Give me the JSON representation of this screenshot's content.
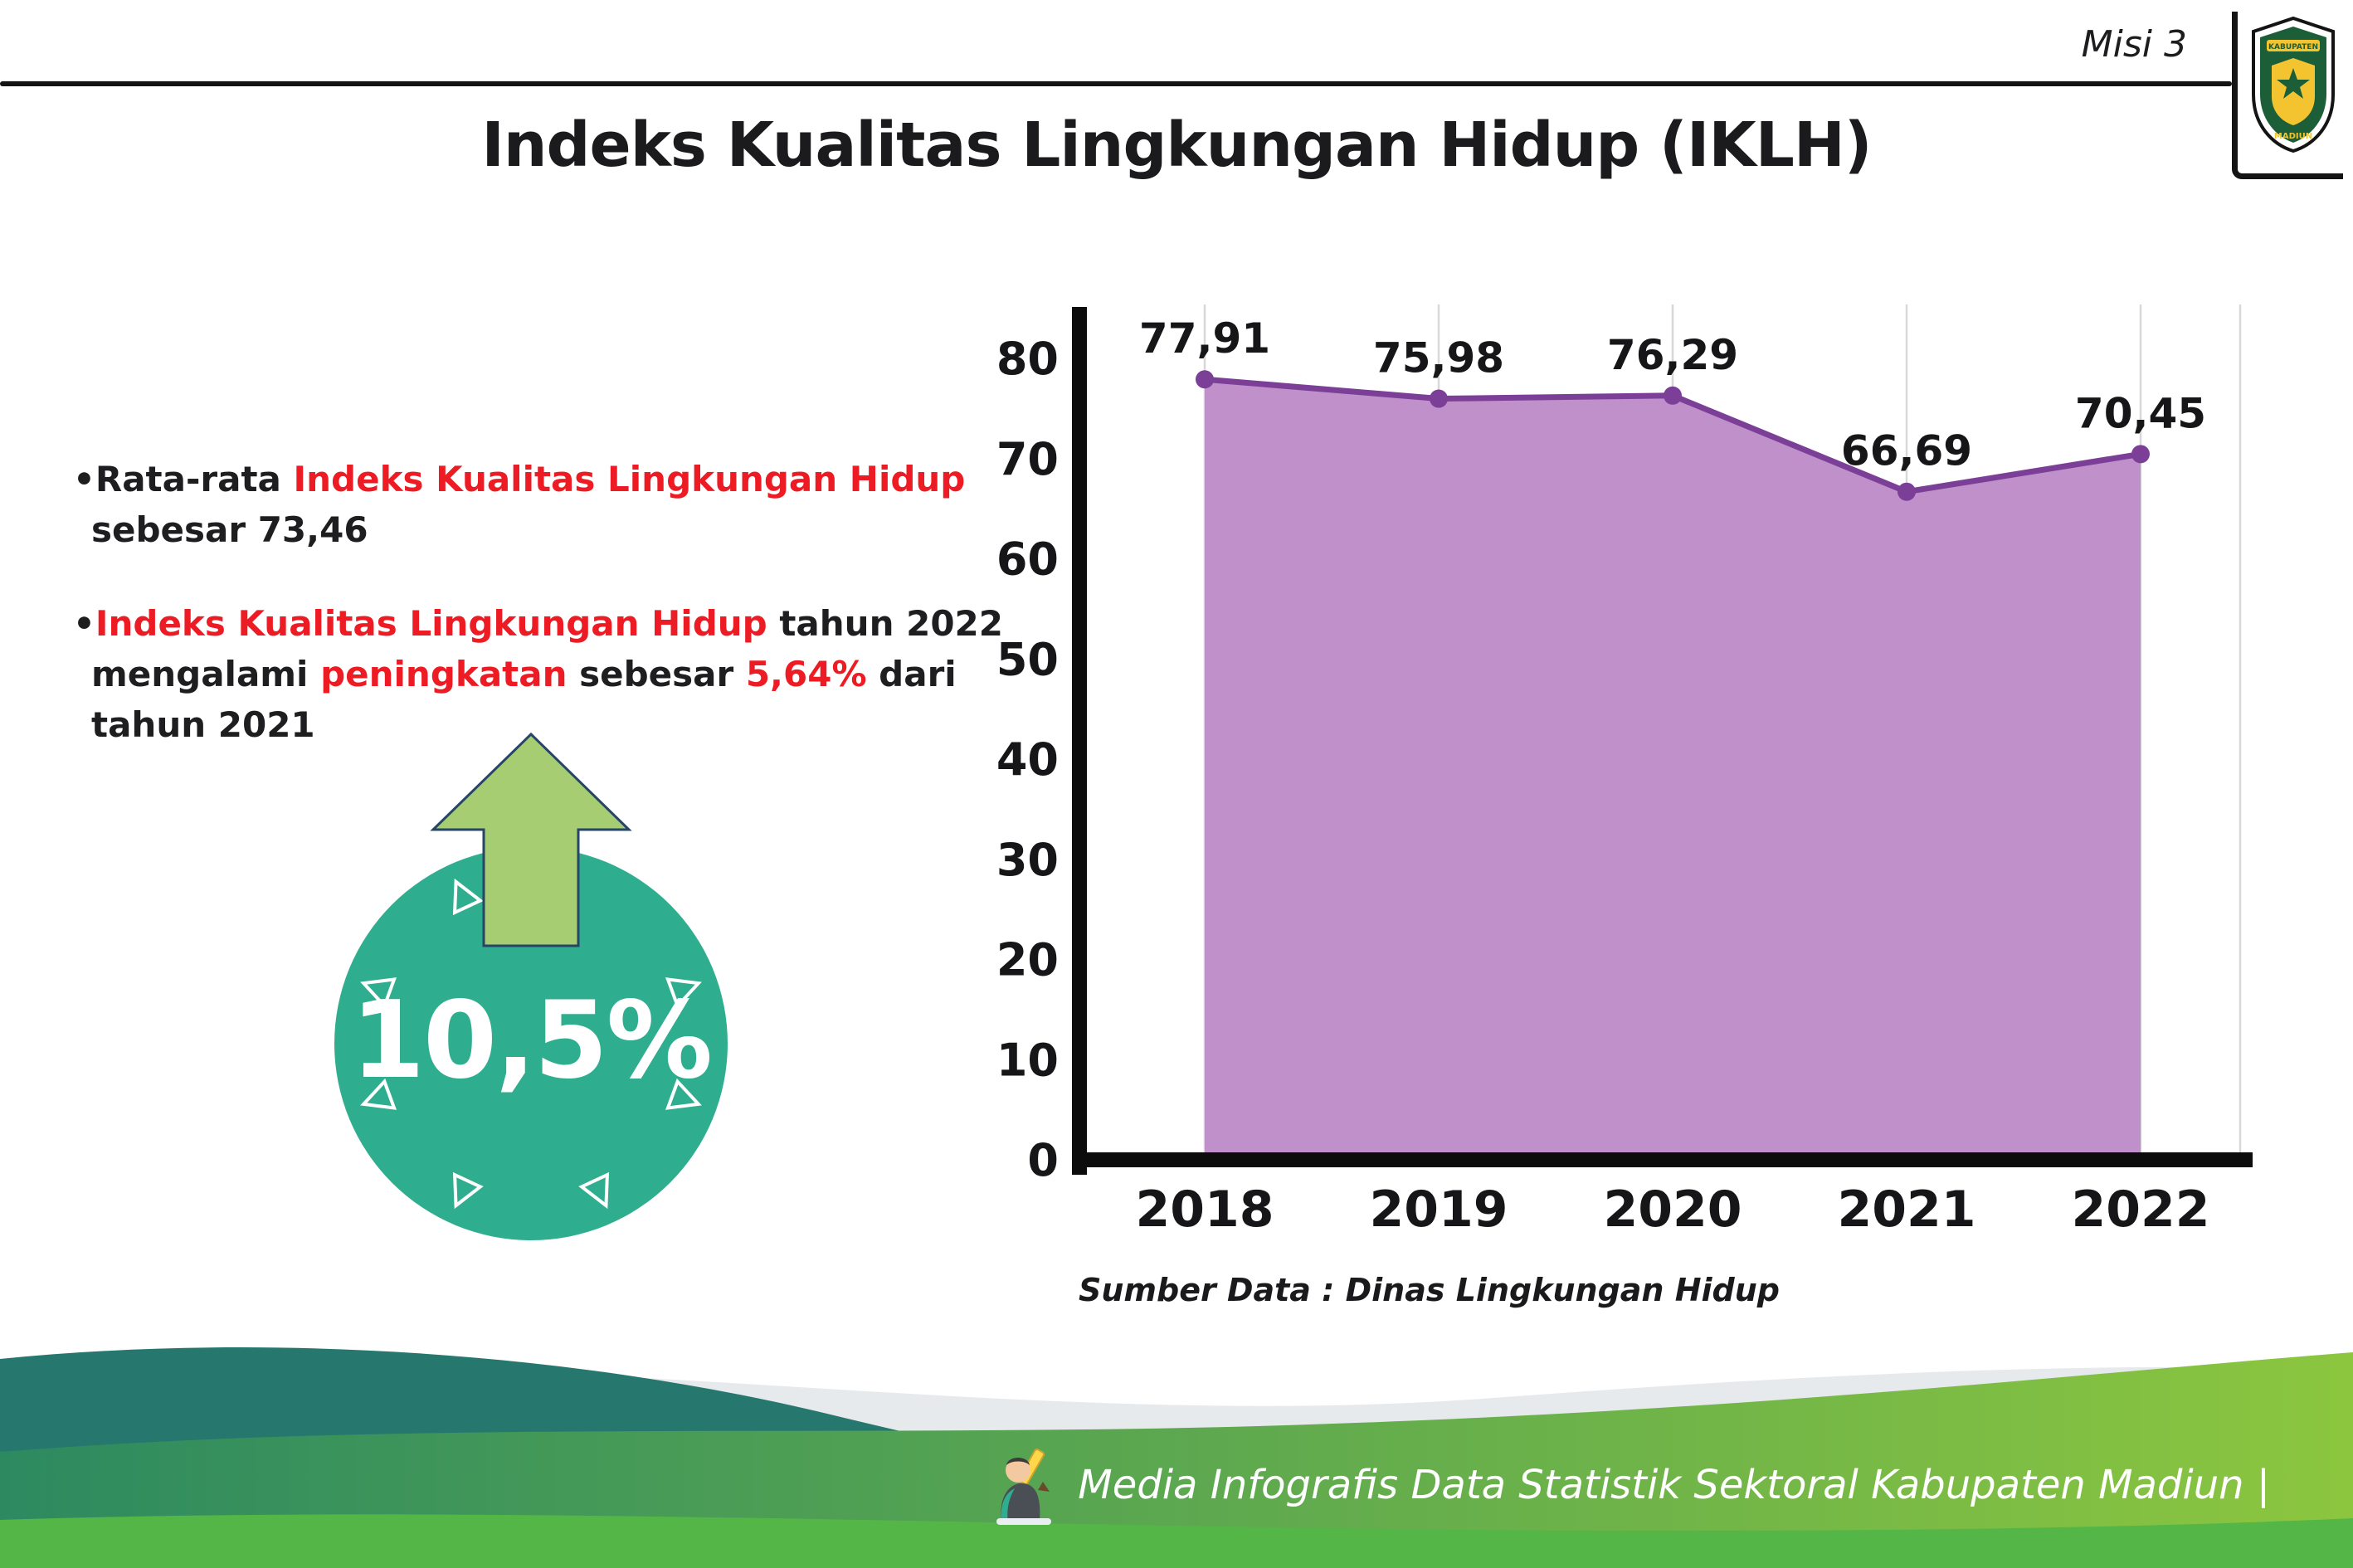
{
  "header": {
    "mission": "Misi 3",
    "title": "Indeks Kualitas Lingkungan Hidup (IKLH)"
  },
  "logo": {
    "top_text": "KABUPATEN",
    "bottom_text": "MADIUN"
  },
  "bullets": {
    "marker": "•",
    "b1": {
      "p1": "Rata-rata ",
      "p2": "Indeks Kualitas Lingkungan Hidup",
      "p3": " sebesar 73,46"
    },
    "b2": {
      "p1": "Indeks Kualitas Lingkungan Hidup",
      "p2": " tahun 2022 mengalami ",
      "p3": "peningkatan",
      "p4": " sebesar ",
      "p5": "5,64%",
      "p6": " dari tahun 2021"
    }
  },
  "badge": {
    "value": "10,5%",
    "direction": "up"
  },
  "chart_data": {
    "type": "area",
    "title": "Indeks Kualitas Lingkungan Hidup (IKLH)",
    "categories": [
      "2018",
      "2019",
      "2020",
      "2021",
      "2022"
    ],
    "values": [
      77.91,
      75.98,
      76.29,
      66.69,
      70.45
    ],
    "point_labels": [
      "77,91",
      "75,98",
      "76,29",
      "66,69",
      "70,45"
    ],
    "ylim": [
      0,
      80
    ],
    "yticks": [
      0,
      10,
      20,
      30,
      40,
      50,
      60,
      70,
      80
    ],
    "xlabel": "",
    "ylabel": "",
    "grid": "vertical-only",
    "legend": "none",
    "source": "Sumber Data : Dinas Lingkungan Hidup",
    "fill_color": "#bf90c9",
    "line_color": "#7b3f98",
    "axis_color": "#0c0c0c"
  },
  "footer": {
    "text": "Media Infografis Data Statistik Sektoral Kabupaten Madiun |"
  },
  "colors": {
    "accent_red": "#ed1c24",
    "badge_teal": "#2fae8f",
    "arrow_green": "#a6cd72",
    "footer_teal": "#26786e",
    "footer_green": "#55b648"
  }
}
